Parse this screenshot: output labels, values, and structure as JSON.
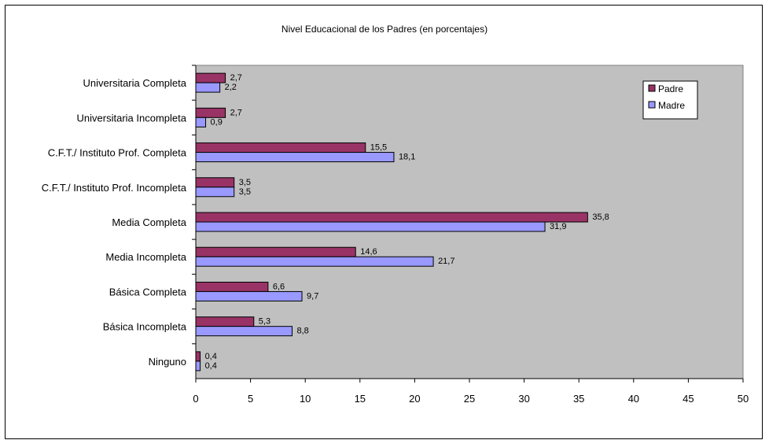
{
  "chart_data": {
    "type": "bar",
    "orientation": "horizontal",
    "title": "Nivel Educacional de los Padres (en porcentajes)",
    "categories": [
      "Universitaria Completa",
      "Universitaria Incompleta",
      "C.F.T./ Instituto Prof. Completa",
      "C.F.T./ Instituto Prof. Incompleta",
      "Media Completa",
      "Media Incompleta",
      "Básica Completa",
      "Básica Incompleta",
      "Ninguno"
    ],
    "series": [
      {
        "name": "Padre",
        "color": "#993366",
        "values": [
          2.7,
          2.7,
          15.5,
          3.5,
          35.8,
          14.6,
          6.6,
          5.3,
          0.4
        ],
        "labels": [
          "2,7",
          "2,7",
          "15,5",
          "3,5",
          "35,8",
          "14,6",
          "6,6",
          "5,3",
          "0,4"
        ]
      },
      {
        "name": "Madre",
        "color": "#9999FF",
        "values": [
          2.2,
          0.9,
          18.1,
          3.5,
          31.9,
          21.7,
          9.7,
          8.8,
          0.4
        ],
        "labels": [
          "2,2",
          "0,9",
          "18,1",
          "3,5",
          "31,9",
          "21,7",
          "9,7",
          "8,8",
          "0,4"
        ]
      }
    ],
    "xticks": [
      "0",
      "5",
      "10",
      "15",
      "20",
      "25",
      "30",
      "35",
      "40",
      "45",
      "50"
    ],
    "xlim": [
      0,
      50
    ],
    "plot_background": "#C0C0C0",
    "grid": false,
    "legend_position": "top-right"
  }
}
